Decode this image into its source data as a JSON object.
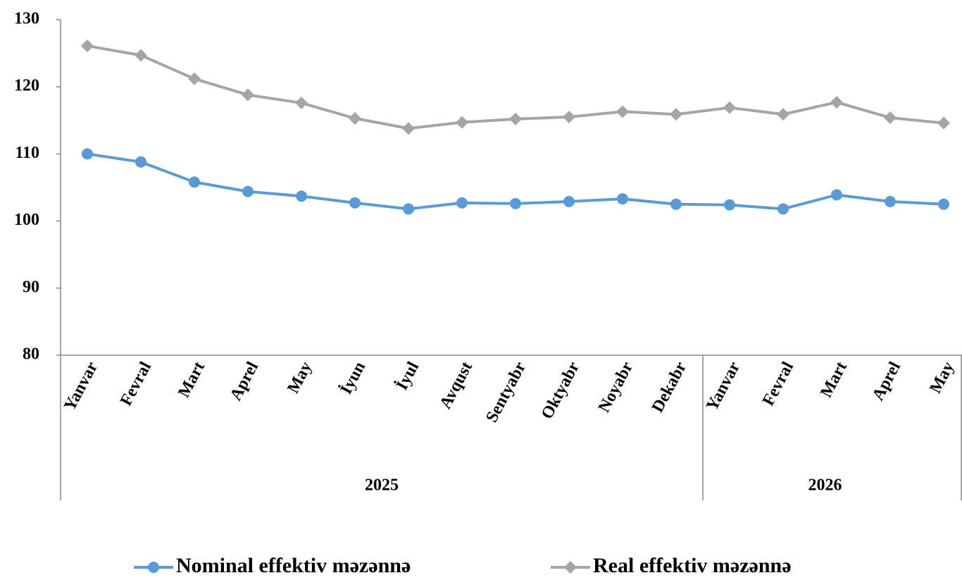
{
  "chart_data": {
    "type": "line",
    "categories": [
      "Yanvar",
      "Fevral",
      "Mart",
      "Aprel",
      "May",
      "İyun",
      "İyul",
      "Avqust",
      "Sentyabr",
      "Oktyabr",
      "Noyabr",
      "Dekabr",
      "Yanvar",
      "Fevral",
      "Mart",
      "Aprel",
      "May"
    ],
    "year_groups": [
      {
        "name": "2025",
        "size": 12
      },
      {
        "name": "2026",
        "size": 5
      }
    ],
    "series": [
      {
        "name": "Nominal effektiv məzənnə",
        "color": "#5b9bd5",
        "marker": "circle",
        "values": [
          110.0,
          108.8,
          105.8,
          104.4,
          103.7,
          102.7,
          101.8,
          102.7,
          102.6,
          102.9,
          103.3,
          102.5,
          102.4,
          101.8,
          103.9,
          102.9,
          102.5
        ]
      },
      {
        "name": "Real effektiv məzənnə",
        "color": "#a5a5a5",
        "marker": "diamond",
        "values": [
          126.1,
          124.7,
          121.2,
          118.8,
          117.6,
          115.3,
          113.8,
          114.7,
          115.2,
          115.5,
          116.3,
          115.9,
          116.9,
          115.9,
          117.7,
          115.4,
          114.6
        ]
      }
    ],
    "ylim": [
      80,
      130
    ],
    "yticks": [
      80,
      90,
      100,
      110,
      120,
      130
    ],
    "legend": "bottom"
  }
}
